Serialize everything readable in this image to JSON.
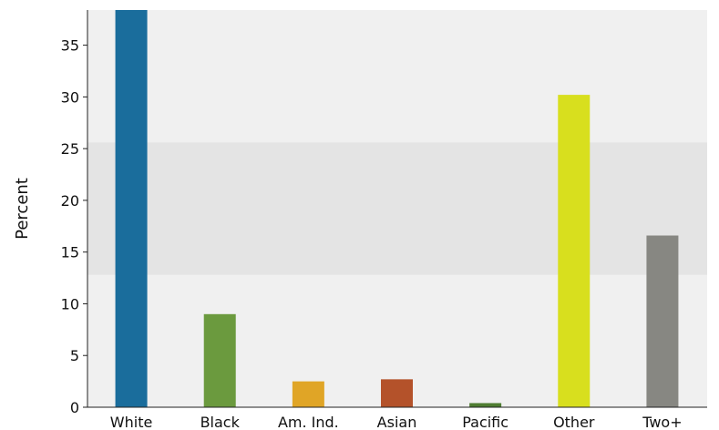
{
  "chart_data": {
    "type": "bar",
    "title": "",
    "xlabel": "",
    "ylabel": "Percent",
    "categories": [
      "White",
      "Black",
      "Am. Ind.",
      "Asian",
      "Pacific",
      "Other",
      "Two+"
    ],
    "values": [
      38.4,
      9.0,
      2.5,
      2.7,
      0.4,
      30.2,
      16.6
    ],
    "colors": [
      "#1a6d9c",
      "#6b9a3e",
      "#e0a526",
      "#b4522a",
      "#4f7d32",
      "#d8df1e",
      "#878782"
    ],
    "ylim": [
      0,
      38.4
    ],
    "yticks": [
      0,
      5,
      10,
      15,
      20,
      25,
      30,
      35
    ],
    "shaded_band": [
      12.8,
      25.6
    ],
    "background_color": "#f0f0f0",
    "band_color": "#e4e4e4",
    "grid": false,
    "legend": "none"
  }
}
